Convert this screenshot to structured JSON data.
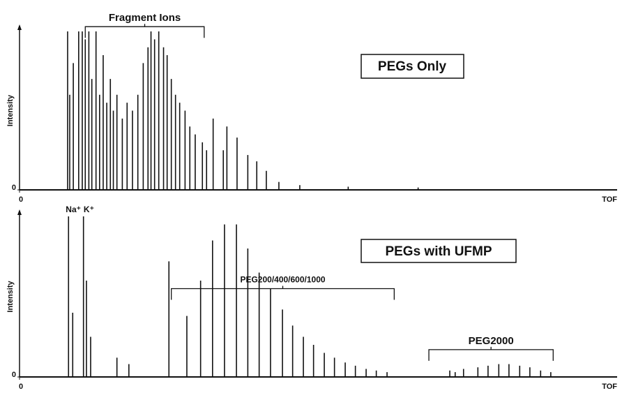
{
  "chart_data": [
    {
      "type": "stem",
      "title": "PEGs Only",
      "xlabel": "TOF",
      "ylabel": "Intensity",
      "xlim": [
        0,
        100
      ],
      "ylim": [
        0,
        100
      ],
      "xticks": [
        0
      ],
      "yticks": [
        0
      ],
      "color": "#111111",
      "x": [
        8.05,
        8.4,
        9,
        9.9,
        10.5,
        11,
        11.6,
        12.1,
        12.8,
        13.4,
        14,
        14.6,
        15.2,
        15.7,
        16.3,
        17.2,
        18,
        18.9,
        19.8,
        20.7,
        21.5,
        22,
        22.6,
        23.3,
        24.1,
        24.7,
        25.4,
        26.1,
        26.8,
        27.7,
        28.5,
        29.4,
        30.6,
        31.3,
        32.4,
        34.1,
        34.7,
        36.4,
        38.2,
        39.7,
        41.3,
        43.4,
        46.9,
        55,
        66.7
      ],
      "values": [
        100,
        60,
        80,
        100,
        100,
        95,
        100,
        70,
        100,
        60,
        85,
        55,
        70,
        50,
        60,
        45,
        55,
        50,
        60,
        80,
        90,
        100,
        95,
        100,
        90,
        85,
        70,
        60,
        55,
        50,
        40,
        35,
        30,
        25,
        45,
        25,
        40,
        33,
        22,
        18,
        12,
        5,
        3,
        2,
        1.5
      ],
      "annotations": [
        {
          "text": "Fragment Ions",
          "x": [
            11,
            30.9
          ],
          "y": 103
        }
      ]
    },
    {
      "type": "stem",
      "title": "PEGs with UFMP",
      "xlabel": "TOF",
      "ylabel": "Intensity",
      "xlim": [
        0,
        100
      ],
      "ylim": [
        0,
        100
      ],
      "xticks": [
        0
      ],
      "yticks": [
        0
      ],
      "color": "#111111",
      "x": [
        8.2,
        8.9,
        10.7,
        11.2,
        11.9,
        16.3,
        18.3,
        25,
        28,
        30.3,
        32.3,
        34.3,
        36.3,
        38.2,
        40.1,
        42,
        44,
        45.7,
        47.5,
        49.2,
        51,
        52.7,
        54.5,
        56.2,
        58,
        59.7,
        61.5,
        72.9,
        72,
        74.3,
        76.7,
        78.4,
        80.2,
        81.9,
        83.7,
        85.4,
        87.2,
        88.9
      ],
      "values": [
        100,
        40,
        100,
        60,
        25,
        12,
        8,
        72,
        38,
        60,
        85,
        95,
        95,
        80,
        65,
        55,
        42,
        32,
        25,
        20,
        15,
        12,
        9,
        7,
        5,
        4,
        3,
        3,
        4,
        5,
        6,
        7,
        8,
        8,
        7,
        6,
        4,
        3
      ],
      "annotations": [
        {
          "text": "Na⁺",
          "x": 9,
          "y": 104
        },
        {
          "text": "K⁺",
          "x": 11.6,
          "y": 104
        },
        {
          "text": "PEG200/400/600/1000",
          "x": [
            25.4,
            62.7
          ],
          "y": 55
        },
        {
          "text": "PEG2000",
          "x": [
            68.5,
            89.3
          ],
          "y": 17
        }
      ]
    }
  ]
}
